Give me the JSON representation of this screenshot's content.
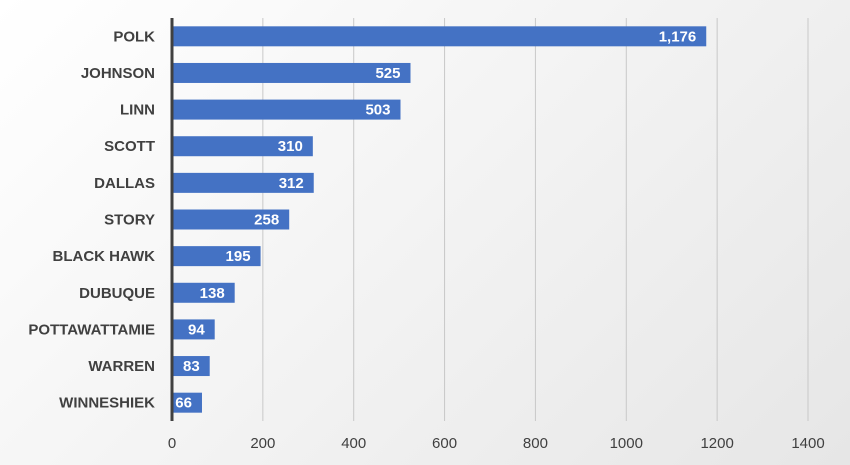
{
  "chart_data": {
    "type": "bar",
    "orientation": "horizontal",
    "title": "",
    "xlabel": "",
    "ylabel": "",
    "categories": [
      "POLK",
      "JOHNSON",
      "LINN",
      "SCOTT",
      "DALLAS",
      "STORY",
      "BLACK HAWK",
      "DUBUQUE",
      "POTTAWATTAMIE",
      "WARREN",
      "WINNESHIEK"
    ],
    "values": [
      1176,
      525,
      503,
      310,
      312,
      258,
      195,
      138,
      94,
      83,
      66
    ],
    "data_labels": [
      "1,176",
      "525",
      "503",
      "310",
      "312",
      "258",
      "195",
      "138",
      "94",
      "83",
      "66"
    ],
    "xlim": [
      0,
      1400
    ],
    "xticks": [
      0,
      200,
      400,
      600,
      800,
      1000,
      1200,
      1400
    ],
    "grid": "vertical",
    "legend": "none",
    "bar_color": "#4472C4",
    "axis_color": "#404040",
    "grid_color": "#c8c8c8"
  }
}
